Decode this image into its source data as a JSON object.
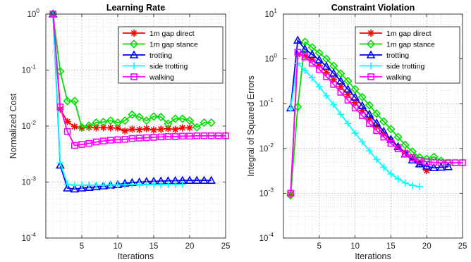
{
  "chart_data": [
    {
      "type": "line",
      "title": "Learning Rate",
      "xlabel": "Iterations",
      "ylabel": "Normalized Cost",
      "xlim": [
        0,
        25
      ],
      "ylim": [
        0.0001,
        1
      ],
      "yscale": "log",
      "grid": true,
      "legend_position": "top-right",
      "xticks": [
        5,
        10,
        15,
        20,
        25
      ],
      "xtick_labels": [
        "5",
        "10",
        "15",
        "20",
        "25"
      ],
      "yticks": [
        1,
        0.1,
        0.01,
        0.001,
        0.0001
      ],
      "ytick_labels": [
        {
          "base": "10",
          "exp": "0"
        },
        {
          "base": "10",
          "exp": "-1"
        },
        {
          "base": "10",
          "exp": "-2"
        },
        {
          "base": "10",
          "exp": "-3"
        },
        {
          "base": "10",
          "exp": "-4"
        }
      ],
      "series": [
        {
          "name": "1m gap direct",
          "color": "#ff0000",
          "marker": "star",
          "x": [
            1,
            2,
            3,
            4,
            5,
            6,
            7,
            8,
            9,
            10,
            11,
            12,
            13,
            14,
            15,
            16,
            17,
            18,
            19,
            20
          ],
          "y": [
            1.0,
            0.02,
            0.012,
            0.0098,
            0.0092,
            0.0095,
            0.0093,
            0.0094,
            0.0093,
            0.0092,
            0.0082,
            0.0088,
            0.0086,
            0.009,
            0.0085,
            0.0088,
            0.009,
            0.0087,
            0.0093,
            0.0093
          ]
        },
        {
          "name": "1m gap stance",
          "color": "#00e000",
          "marker": "diamond",
          "x": [
            1,
            2,
            3,
            4,
            5,
            6,
            7,
            8,
            9,
            10,
            11,
            12,
            13,
            14,
            15,
            16,
            17,
            18,
            19,
            20,
            21,
            22,
            23
          ],
          "y": [
            1.0,
            0.095,
            0.028,
            0.028,
            0.0095,
            0.0102,
            0.0115,
            0.0118,
            0.0125,
            0.0115,
            0.0125,
            0.016,
            0.0145,
            0.0125,
            0.0148,
            0.0145,
            0.011,
            0.0135,
            0.0135,
            0.0125,
            0.0095,
            0.0115,
            0.0115
          ]
        },
        {
          "name": "trotting",
          "color": "#0000ff",
          "marker": "triangle",
          "x": [
            1,
            2,
            3,
            4,
            5,
            6,
            7,
            8,
            9,
            10,
            11,
            12,
            13,
            14,
            15,
            16,
            17,
            18,
            19,
            20,
            21,
            22,
            23
          ],
          "y": [
            1.0,
            0.002,
            0.00078,
            0.00075,
            0.00078,
            0.0008,
            0.00082,
            0.00085,
            0.00088,
            0.0009,
            0.00095,
            0.00098,
            0.001,
            0.00102,
            0.00103,
            0.00104,
            0.00105,
            0.00106,
            0.00107,
            0.00107,
            0.00107,
            0.00107,
            0.00107
          ]
        },
        {
          "name": "side trotting",
          "color": "#00ffff",
          "marker": "plus",
          "x": [
            1,
            2,
            3,
            4,
            5,
            6,
            7,
            8,
            9,
            10,
            11,
            12,
            13,
            14,
            15,
            16,
            17,
            18,
            19
          ],
          "y": [
            1.0,
            0.0022,
            0.00092,
            0.00088,
            0.00088,
            0.00088,
            0.00088,
            0.00088,
            0.00089,
            0.00089,
            0.00089,
            0.0009,
            0.0009,
            0.0009,
            0.0009,
            0.0009,
            0.00091,
            0.00091,
            0.00091
          ]
        },
        {
          "name": "walking",
          "color": "#ff00ff",
          "marker": "square",
          "x": [
            1,
            2,
            3,
            4,
            5,
            6,
            7,
            8,
            9,
            10,
            11,
            12,
            13,
            14,
            15,
            16,
            17,
            18,
            19,
            20,
            21,
            22,
            23,
            24,
            25
          ],
          "y": [
            1.0,
            0.022,
            0.008,
            0.0045,
            0.0047,
            0.0049,
            0.0052,
            0.0054,
            0.0056,
            0.0057,
            0.0058,
            0.006,
            0.0061,
            0.0062,
            0.0063,
            0.0064,
            0.0065,
            0.0065,
            0.0066,
            0.0066,
            0.0067,
            0.0067,
            0.0067,
            0.0067,
            0.0067
          ]
        }
      ]
    },
    {
      "type": "line",
      "title": "Constraint Violation",
      "xlabel": "Iterations",
      "ylabel": "Integral of Squared Errors",
      "xlim": [
        0,
        25
      ],
      "ylim": [
        0.0001,
        10
      ],
      "yscale": "log",
      "grid": true,
      "legend_position": "top-right",
      "xticks": [
        5,
        10,
        15,
        20,
        25
      ],
      "xtick_labels": [
        "5",
        "10",
        "15",
        "20",
        "25"
      ],
      "yticks": [
        10,
        1,
        0.1,
        0.01,
        0.001,
        0.0001
      ],
      "ytick_labels": [
        {
          "base": "10",
          "exp": "1"
        },
        {
          "base": "10",
          "exp": "0"
        },
        {
          "base": "10",
          "exp": "-1"
        },
        {
          "base": "10",
          "exp": "-2"
        },
        {
          "base": "10",
          "exp": "-3"
        },
        {
          "base": "10",
          "exp": "-4"
        }
      ],
      "series": [
        {
          "name": "1m gap direct",
          "color": "#ff0000",
          "marker": "star",
          "x": [
            1,
            2,
            3,
            4,
            5,
            6,
            7,
            8,
            9,
            10,
            11,
            12,
            13,
            14,
            15,
            16,
            17,
            18,
            19,
            20
          ],
          "y": [
            0.00095,
            1.25,
            1.2,
            0.95,
            0.72,
            0.5,
            0.35,
            0.24,
            0.16,
            0.105,
            0.07,
            0.046,
            0.031,
            0.021,
            0.015,
            0.011,
            0.0082,
            0.0061,
            0.0046,
            0.0032
          ]
        },
        {
          "name": "1m gap stance",
          "color": "#00e000",
          "marker": "diamond",
          "x": [
            1,
            2,
            3,
            4,
            5,
            6,
            7,
            8,
            9,
            10,
            11,
            12,
            13,
            14,
            15,
            16,
            17,
            18,
            19,
            20,
            21,
            22,
            23
          ],
          "y": [
            0.0009,
            0.085,
            2.4,
            1.8,
            1.35,
            1.0,
            0.7,
            0.47,
            0.32,
            0.21,
            0.14,
            0.092,
            0.06,
            0.04,
            0.027,
            0.018,
            0.012,
            0.0085,
            0.0063,
            0.0058,
            0.0065,
            0.0053,
            0.0047
          ]
        },
        {
          "name": "trotting",
          "color": "#0000ff",
          "marker": "triangle",
          "x": [
            1,
            2,
            3,
            4,
            5,
            6,
            7,
            8,
            9,
            10,
            11,
            12,
            13,
            14,
            15,
            16,
            17,
            18,
            19,
            20,
            21,
            22,
            23
          ],
          "y": [
            0.08,
            2.6,
            1.65,
            1.25,
            0.95,
            0.68,
            0.48,
            0.32,
            0.21,
            0.14,
            0.09,
            0.058,
            0.037,
            0.024,
            0.016,
            0.011,
            0.0075,
            0.0055,
            0.0045,
            0.004,
            0.0037,
            0.0038,
            0.0039
          ]
        },
        {
          "name": "side trotting",
          "color": "#00ffff",
          "marker": "plus",
          "x": [
            1,
            2,
            3,
            4,
            5,
            6,
            7,
            8,
            9,
            10,
            11,
            12,
            13,
            14,
            15,
            16,
            17,
            18,
            19
          ],
          "y": [
            0.08,
            0.8,
            0.55,
            0.38,
            0.24,
            0.15,
            0.095,
            0.058,
            0.036,
            0.022,
            0.014,
            0.0088,
            0.0057,
            0.0038,
            0.0027,
            0.0021,
            0.0017,
            0.0015,
            0.0014
          ]
        },
        {
          "name": "walking",
          "color": "#ff00ff",
          "marker": "square",
          "x": [
            1,
            2,
            3,
            4,
            5,
            6,
            7,
            8,
            9,
            10,
            11,
            12,
            13,
            14,
            15,
            16,
            17,
            18,
            19,
            20,
            21,
            22,
            23,
            24,
            25
          ],
          "y": [
            0.001,
            1.4,
            1.1,
            0.8,
            0.58,
            0.4,
            0.27,
            0.18,
            0.12,
            0.08,
            0.054,
            0.036,
            0.025,
            0.018,
            0.013,
            0.0098,
            0.0076,
            0.0062,
            0.0054,
            0.005,
            0.0049,
            0.0048,
            0.0048,
            0.0048,
            0.0048
          ]
        }
      ]
    }
  ]
}
